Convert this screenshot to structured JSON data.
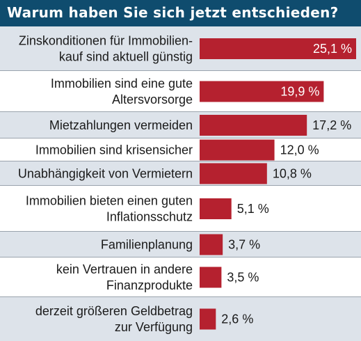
{
  "title": "Warum haben Sie sich jetzt entschieden?",
  "colors": {
    "title_bar": "#0f4c6e",
    "bar": "#b5212f",
    "row_shade": "#dde3ea",
    "row_plain": "#ffffff",
    "separator": "#9aa3ad"
  },
  "chart_data": {
    "type": "bar",
    "orientation": "horizontal",
    "title": "Warum haben Sie sich jetzt entschieden?",
    "unit": "%",
    "categories": [
      [
        "Zinskonditionen für Immobilien-",
        "kauf sind aktuell günstig"
      ],
      [
        "Immobilien sind eine gute",
        "Altersvorsorge"
      ],
      [
        "Mietzahlungen vermeiden"
      ],
      [
        "Immobilien sind krisensicher"
      ],
      [
        "Unabhängigkeit von Vermietern"
      ],
      [
        "Immobilien bieten einen guten",
        "Inflationsschutz"
      ],
      [
        "Familienplanung"
      ],
      [
        "kein Vertrauen in andere",
        "Finanzprodukte"
      ],
      [
        "derzeit größeren Geldbetrag",
        "zur Verfügung"
      ]
    ],
    "values": [
      25.1,
      19.9,
      17.2,
      12.0,
      10.8,
      5.1,
      3.7,
      3.5,
      2.6
    ],
    "value_labels": [
      "25,1 %",
      "19,9 %",
      "17,2 %",
      "12,0 %",
      "10,8 %",
      "5,1 %",
      "3,7 %",
      "3,5 %",
      "2,6 %"
    ],
    "labels_inside": [
      true,
      true,
      false,
      false,
      false,
      false,
      false,
      false,
      false
    ],
    "xlim": [
      0,
      25.1
    ],
    "grid": false,
    "legend": "none"
  }
}
